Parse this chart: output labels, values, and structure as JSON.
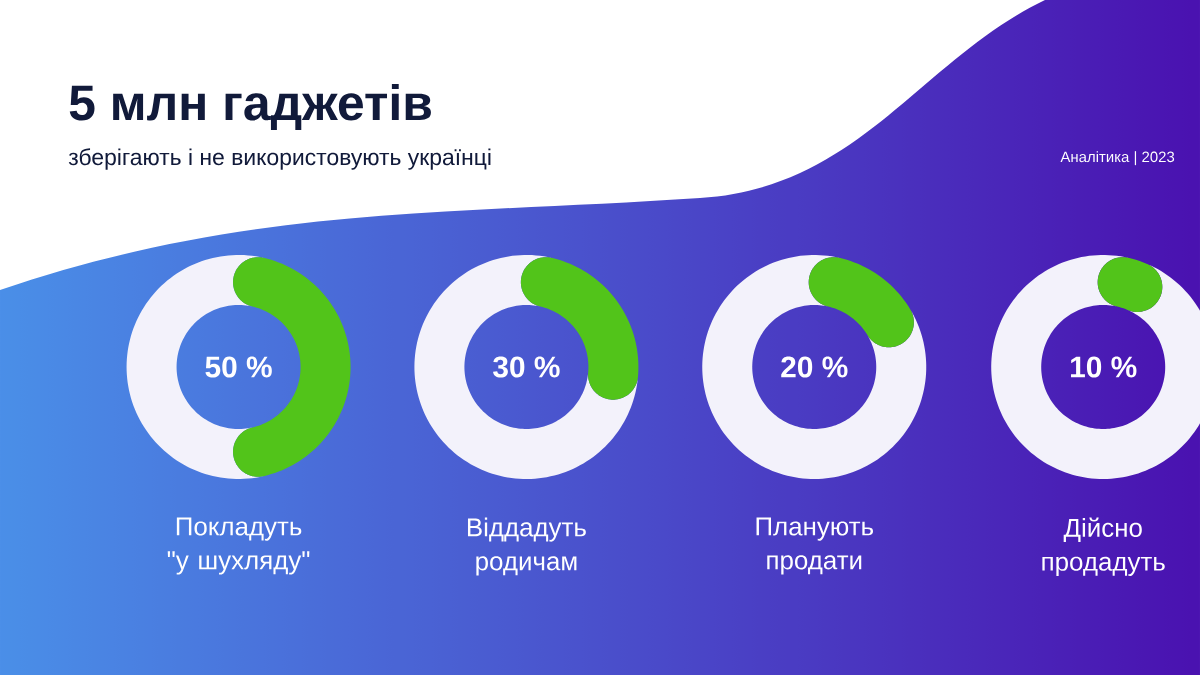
{
  "chart_data": [
    {
      "type": "donut",
      "title": "5 млн гаджетів",
      "subtitle": "зберігають і не використовують українці",
      "annotations": [
        "Аналітика | 2023",
        "50 %"
      ],
      "xlabel": "Покладуть \"у шухляду\"",
      "categories": [
        null,
        null
      ],
      "values": [
        50,
        50
      ],
      "colors": [
        "#52c41a",
        "#f3f2fb"
      ]
    },
    {
      "type": "donut",
      "annotations": [
        "30 %"
      ],
      "xlabel": "Віддадуть родичам",
      "categories": [
        null,
        null
      ],
      "values": [
        30,
        70
      ],
      "colors": [
        "#52c41a",
        "#f3f2fb"
      ]
    },
    {
      "type": "donut",
      "annotations": [
        "20 %"
      ],
      "xlabel": "Планують продати",
      "categories": [
        null,
        null
      ],
      "values": [
        20,
        80
      ],
      "colors": [
        "#52c41a",
        "#f3f2fb"
      ]
    },
    {
      "type": "donut",
      "annotations": [
        "10 %"
      ],
      "xlabel": "Дійсно продадуть",
      "categories": [
        null,
        null
      ],
      "values": [
        10,
        90
      ],
      "colors": [
        "#52c41a",
        "#f3f2fb"
      ]
    }
  ]
}
